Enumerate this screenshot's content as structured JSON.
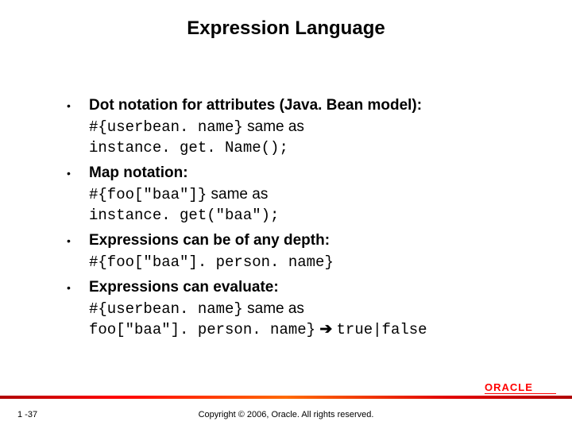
{
  "colors": {
    "background": "#ffffff",
    "text": "#000000",
    "accent_red": "#ff0000",
    "bar_gradient": [
      "#b00000",
      "#ff0000",
      "#ff6a00",
      "#e00000",
      "#b00000"
    ]
  },
  "typography": {
    "title_fontsize": 24,
    "body_fontsize": 19,
    "code_fontfamily": "Courier New",
    "body_fontfamily": "Arial",
    "footer_fontsize": 11
  },
  "title": "Expression Language",
  "bullets": [
    {
      "lead": "Dot notation for attributes (Java. Bean model):",
      "code1": "#{userbean. name}",
      "mid": " same as",
      "code2": "instance. get. Name();"
    },
    {
      "lead": "Map notation:",
      "code1": "#{foo[\"baa\"]}",
      "mid": " same as",
      "code2": "instance. get(\"baa\");"
    },
    {
      "lead": "Expressions can be of any depth:",
      "code1": "#{foo[\"baa\"]. person. name}",
      "mid": "",
      "code2": ""
    },
    {
      "lead": "Expressions can evaluate:",
      "code1": "#{userbean. name}",
      "mid": " same as",
      "code2": "foo[\"baa\"]. person. name}",
      "arrow": "  ➔  ",
      "tail": "true|false"
    }
  ],
  "footer": {
    "page": "1 -37",
    "copyright": "Copyright © 2006, Oracle.  All rights reserved.",
    "logo_text": "ORACLE"
  }
}
